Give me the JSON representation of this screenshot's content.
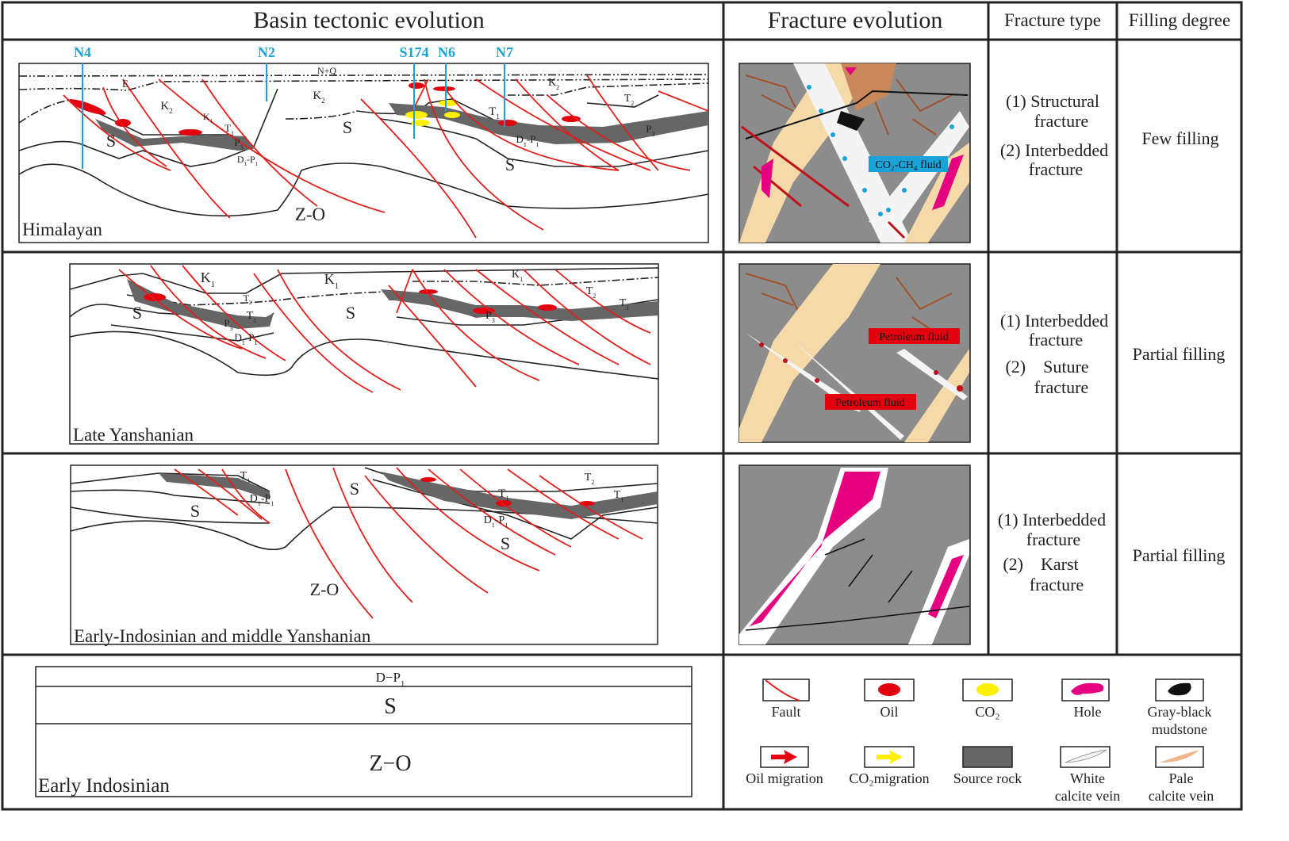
{
  "header": {
    "basin": "Basin tectonic evolution",
    "fracture_evolution": "Fracture  evolution",
    "fracture_type": "Fracture  type",
    "filling_degree": "Filling degree"
  },
  "rows": [
    {
      "stage": "Himalayan",
      "fracture_type": [
        "(1) Structural",
        "fracture",
        "(2) Interbedded",
        "fracture"
      ],
      "filling": "Few filling",
      "fluid_labels": [
        "CO₂-CH₄ fluid"
      ],
      "wells": [
        "N4",
        "N2",
        "S174",
        "N6",
        "N7"
      ],
      "strata": [
        {
          "t": "N+Q",
          "s": ""
        },
        {
          "t": "E",
          "s": ""
        },
        {
          "t": "K",
          "s": "2"
        },
        {
          "t": "K",
          "s": "2"
        },
        {
          "t": "K",
          "s": "1"
        },
        {
          "t": "T",
          "s": "1"
        },
        {
          "t": "P",
          "s": "3"
        },
        {
          "t": "D",
          "s": "1",
          "t2": "-P",
          "s2": "1"
        },
        {
          "t": "S",
          "s": ""
        },
        {
          "t": "S",
          "s": ""
        },
        {
          "t": "T",
          "s": "1"
        },
        {
          "t": "D",
          "s": "1",
          "t2": "-P",
          "s2": "1"
        },
        {
          "t": "S",
          "s": ""
        },
        {
          "t": "K",
          "s": "2"
        },
        {
          "t": "T",
          "s": "2"
        },
        {
          "t": "P",
          "s": "3"
        },
        {
          "t": "Z-O",
          "s": ""
        }
      ]
    },
    {
      "stage": "Late Yanshanian",
      "fracture_type": [
        "(1) Interbedded",
        "fracture",
        "(2)    Suture",
        "fracture"
      ],
      "filling": "Partial filling",
      "fluid_labels": [
        "Petroleum fluid",
        "Petroleum fluid"
      ],
      "strata": [
        {
          "t": "K",
          "s": "1"
        },
        {
          "t": "K",
          "s": "1"
        },
        {
          "t": "K",
          "s": "1"
        },
        {
          "t": "T",
          "s": "2"
        },
        {
          "t": "T",
          "s": "1"
        },
        {
          "t": "P",
          "s": "3"
        },
        {
          "t": "D",
          "s": "1",
          "t2": "-P",
          "s2": "1"
        },
        {
          "t": "S",
          "s": ""
        },
        {
          "t": "S",
          "s": ""
        },
        {
          "t": "P",
          "s": "3"
        },
        {
          "t": "T",
          "s": "2"
        },
        {
          "t": "T",
          "s": "1"
        }
      ]
    },
    {
      "stage": "Early-Indosinian and middle Yanshanian",
      "fracture_type": [
        "(1) Interbedded",
        "fracture",
        "(2)    Karst",
        "fracture"
      ],
      "filling": "Partial filling",
      "strata": [
        {
          "t": "T",
          "s": "1"
        },
        {
          "t": "D",
          "s": "1",
          "t2": "-P",
          "s2": "1"
        },
        {
          "t": "S",
          "s": ""
        },
        {
          "t": "S",
          "s": ""
        },
        {
          "t": "T",
          "s": "1"
        },
        {
          "t": "D",
          "s": "1",
          "t2": "-P",
          "s2": "1"
        },
        {
          "t": "S",
          "s": ""
        },
        {
          "t": "T",
          "s": "2"
        },
        {
          "t": "T",
          "s": "1"
        },
        {
          "t": "Z-O",
          "s": ""
        }
      ]
    }
  ],
  "early_indosinian": {
    "stage": "Early Indosinian",
    "layers": [
      {
        "t": "D−P",
        "s": "1"
      },
      {
        "t": "S",
        "s": ""
      },
      {
        "t": "Z−O",
        "s": ""
      }
    ]
  },
  "legend": [
    {
      "icon": "fault-icon",
      "label": [
        "Fault"
      ]
    },
    {
      "icon": "oil-icon",
      "label": [
        "Oil"
      ]
    },
    {
      "icon": "co2-icon",
      "label": [
        "CO₂"
      ]
    },
    {
      "icon": "hole-icon",
      "label": [
        "Hole"
      ]
    },
    {
      "icon": "mudstone-icon",
      "label": [
        "Gray-black",
        "mudstone"
      ]
    },
    {
      "icon": "oil-migration-icon",
      "label": [
        "Oil migration"
      ]
    },
    {
      "icon": "co2-migration-icon",
      "label": [
        "CO₂migration"
      ]
    },
    {
      "icon": "source-rock-icon",
      "label": [
        "Source rock"
      ]
    },
    {
      "icon": "white-calcite-vein-icon",
      "label": [
        "White",
        "calcite vein"
      ]
    },
    {
      "icon": "pale-calcite-vein-icon",
      "label": [
        "Pale",
        "calcite vein"
      ]
    }
  ],
  "colors": {
    "fault": "#e0201c",
    "oil": "#e3000f",
    "co2": "#fff000",
    "hole": "#e4007f",
    "source_rock": "#666666",
    "well": "#1aa3d9",
    "rock_gray": "#8c8c8c",
    "pale_vein": "#f5d9a8",
    "brown": "#a0522d"
  }
}
